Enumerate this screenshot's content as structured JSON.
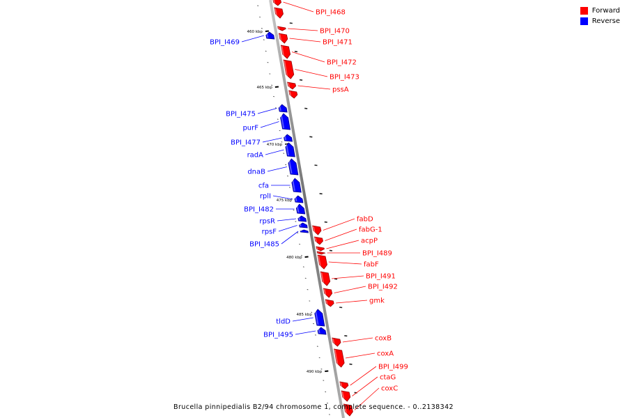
{
  "legend": {
    "forward_label": "Forward",
    "reverse_label": "Reverse",
    "forward_color": "#ff0000",
    "reverse_color": "#0000ff"
  },
  "caption": "Brucella pinnipedialis B2/94 chromosome 1, complete sequence. - 0..2138342",
  "axis": {
    "kbp_labels": [
      "460 kbp",
      "465 kbp",
      "470 kbp",
      "475 kbp",
      "480 kbp",
      "485 kbp",
      "490 kbp"
    ]
  },
  "genes": {
    "forward": [
      "BPI_I468",
      "BPI_I470",
      "BPI_I471",
      "BPI_I472",
      "BPI_I473",
      "pssA",
      "fabD",
      "fabG-1",
      "acpP",
      "BPI_I489",
      "fabF",
      "BPI_I491",
      "BPI_I492",
      "gmk",
      "coxB",
      "coxA",
      "BPI_I499",
      "ctaG",
      "coxC"
    ],
    "reverse": [
      "BPI_I469",
      "BPI_I475",
      "purF",
      "BPI_I477",
      "radA",
      "dnaB",
      "cfa",
      "rplI",
      "BPI_I482",
      "rpsR",
      "rpsF",
      "BPI_I485",
      "tldD",
      "BPI_I495"
    ]
  }
}
